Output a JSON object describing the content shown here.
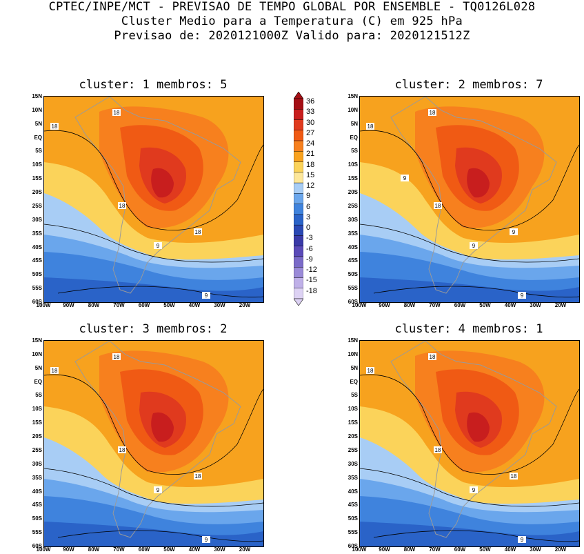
{
  "header": {
    "line1": "CPTEC/INPE/MCT - PREVISAO DE TEMPO GLOBAL POR ENSEMBLE - TQ0126L028",
    "line2": "Cluster Medio para a Temperatura (C) em 925 hPa",
    "line3": "Previsao de: 2020121000Z   Valido para: 2020121512Z"
  },
  "panels": [
    {
      "title": "cluster: 1  membros: 5",
      "contour_labels": [
        "18",
        "18",
        "18",
        "18",
        "9",
        "9"
      ]
    },
    {
      "title": "cluster: 2  membros: 7",
      "contour_labels": [
        "18",
        "18",
        "18",
        "9",
        "9",
        "9",
        "9"
      ]
    },
    {
      "title": "cluster: 3  membros: 2",
      "contour_labels": [
        "18",
        "18",
        "18",
        "18",
        "9",
        "9"
      ]
    },
    {
      "title": "cluster: 4  membros: 1",
      "contour_labels": [
        "18",
        "18",
        "18",
        "18",
        "9",
        "9"
      ]
    }
  ],
  "lat_labels": [
    "15N",
    "10N",
    "5N",
    "EQ",
    "5S",
    "10S",
    "15S",
    "20S",
    "25S",
    "30S",
    "35S",
    "40S",
    "45S",
    "50S",
    "55S",
    "60S"
  ],
  "lon_labels": [
    "100W",
    "90W",
    "80W",
    "70W",
    "60W",
    "50W",
    "40W",
    "30W",
    "20W"
  ],
  "colorbar": {
    "labels": [
      "36",
      "33",
      "30",
      "27",
      "24",
      "21",
      "18",
      "15",
      "12",
      "9",
      "6",
      "3",
      "0",
      "-3",
      "-6",
      "-9",
      "-12",
      "-15",
      "-18"
    ],
    "colors": [
      "#a50f15",
      "#c81e1e",
      "#e03a1e",
      "#f05a14",
      "#f7801e",
      "#f9a21e",
      "#fbd35a",
      "#fde79a",
      "#a8cdf5",
      "#6aa6ec",
      "#3f83dd",
      "#2a63c8",
      "#2a48b4",
      "#3a3aa8",
      "#5a4ab8",
      "#7a6ac8",
      "#9a8ad8",
      "#bfb0e8",
      "#ddd2f4"
    ]
  }
}
